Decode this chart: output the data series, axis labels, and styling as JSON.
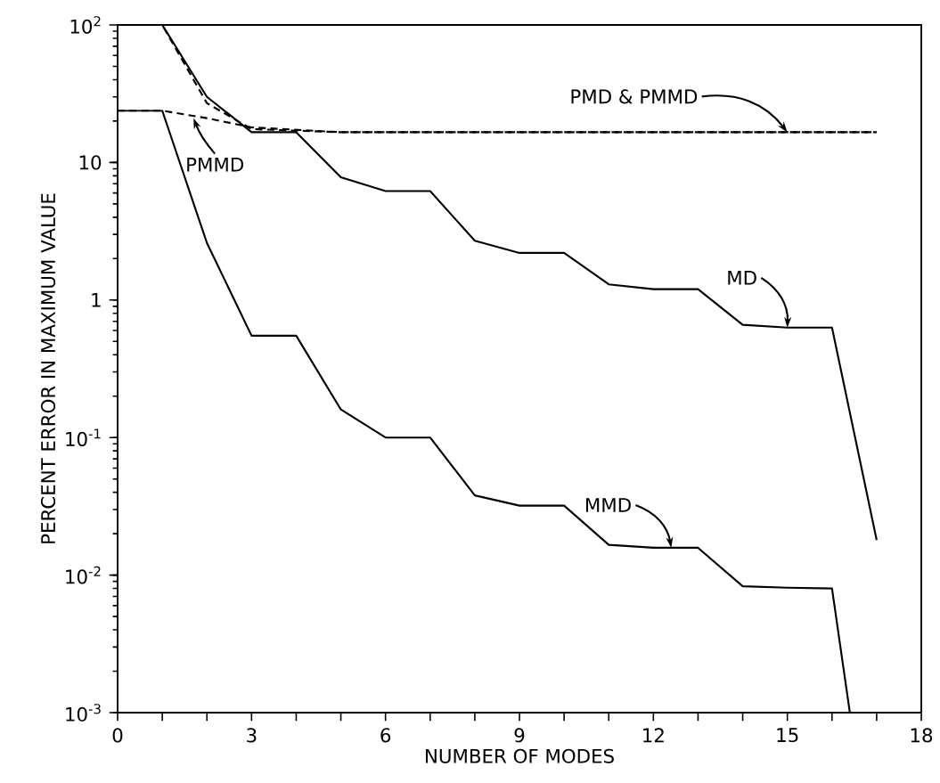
{
  "chart_data": {
    "type": "line",
    "xlabel": "NUMBER OF MODES",
    "ylabel": "PERCENT ERROR IN MAXIMUM VALUE",
    "log": "y",
    "xlim": [
      0,
      18
    ],
    "ylim": [
      0.001,
      100
    ],
    "xticks": [
      0,
      {
        "value": 1,
        "label": null
      },
      {
        "value": 2,
        "label": null
      },
      3,
      {
        "value": 4,
        "label": null
      },
      {
        "value": 5,
        "label": null
      },
      6,
      {
        "value": 7,
        "label": null
      },
      {
        "value": 8,
        "label": null
      },
      9,
      {
        "value": 10,
        "label": null
      },
      {
        "value": 11,
        "label": null
      },
      12,
      {
        "value": 13,
        "label": null
      },
      {
        "value": 14,
        "label": null
      },
      15,
      {
        "value": 16,
        "label": null
      },
      {
        "value": 17,
        "label": null
      },
      18
    ],
    "yticks": [
      {
        "value": 0.001,
        "label": "10$^{-3}$"
      },
      {
        "value": 0.01,
        "label": "10$^{-2}$"
      },
      {
        "value": 0.1,
        "label": "10$^{-1}$"
      },
      1,
      10,
      {
        "value": 100,
        "label": "10$^{2}$"
      }
    ],
    "series": [
      {
        "color": "#000000",
        "line_style": "solid",
        "x": [
          0,
          1,
          2,
          3,
          4,
          5,
          6,
          7,
          8,
          9,
          10,
          11,
          12,
          13,
          14,
          15,
          16,
          17
        ],
        "values": [
          100,
          100,
          30,
          16.6,
          16.6,
          7.8,
          6.2,
          6.2,
          2.7,
          2.2,
          2.2,
          1.3,
          1.2,
          1.2,
          0.66,
          0.63,
          0.63,
          0.018
        ]
      },
      {
        "color": "#000000",
        "line_style": "solid",
        "x": [
          0,
          1,
          2,
          3,
          4,
          5,
          6,
          7,
          8,
          9,
          10,
          11,
          12,
          13,
          14,
          15,
          16,
          16.4
        ],
        "values": [
          23.8,
          23.8,
          2.6,
          0.55,
          0.55,
          0.16,
          0.1,
          0.1,
          0.038,
          0.032,
          0.032,
          0.0166,
          0.0158,
          0.0158,
          0.0083,
          0.0081,
          0.008,
          0.001
        ]
      },
      {
        "color": "#000000",
        "line_style": "dashed",
        "x": [
          0,
          1,
          2,
          3,
          5,
          17
        ],
        "values": [
          100,
          100,
          27,
          17.5,
          16.6,
          16.6
        ]
      },
      {
        "color": "#000000",
        "line_style": "dashed",
        "x": [
          0,
          1,
          2,
          3,
          5,
          17
        ],
        "values": [
          23.8,
          23.8,
          21,
          18,
          16.6,
          16.6
        ]
      }
    ],
    "annotations": [
      {
        "text": "PMD & PMMD",
        "x": 15,
        "y": 16.6
      },
      {
        "text": "PMMD",
        "x": 1.7,
        "y": 21
      },
      {
        "text": "MD",
        "x": 15,
        "y": 0.63
      },
      {
        "text": "MMD",
        "x": 12.4,
        "y": 0.0158
      }
    ]
  }
}
